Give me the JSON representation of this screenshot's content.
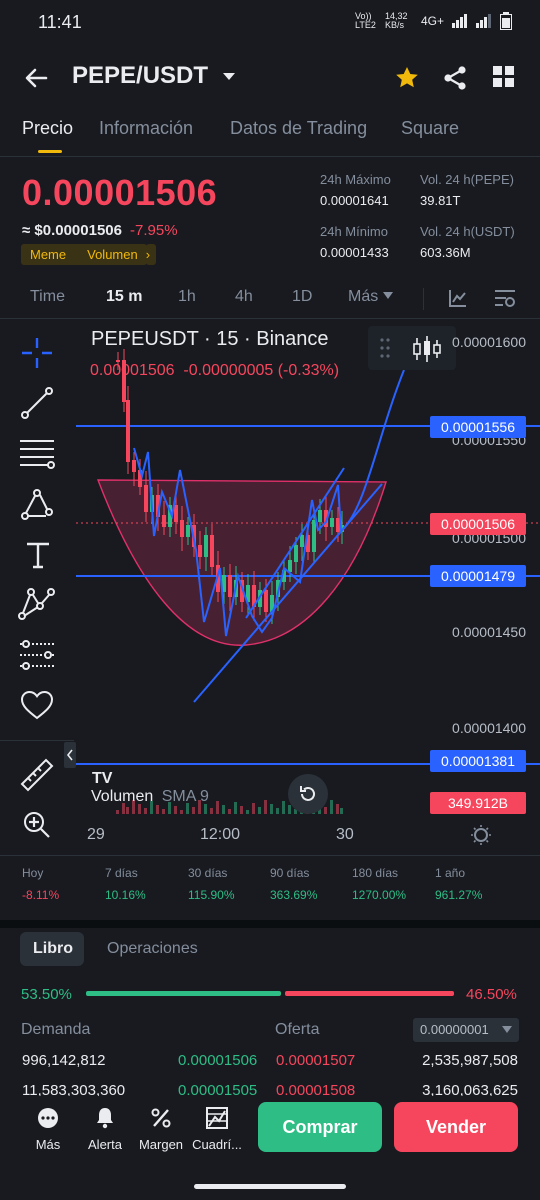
{
  "status": {
    "time": "11:41",
    "network": "Vo)) LTE2",
    "speed": "14,32 KB/s",
    "signal": "4G+"
  },
  "header": {
    "pair": "PEPE/USDT"
  },
  "tabs": [
    "Precio",
    "Información",
    "Datos de Trading",
    "Square"
  ],
  "price": {
    "last": "0.00001506",
    "approx": "≈ $0.00001506",
    "change": "-7.95%",
    "tags": [
      "Meme",
      "Volumen"
    ]
  },
  "stats": {
    "high_label": "24h Máximo",
    "high": "0.00001641",
    "low_label": "24h Mínimo",
    "low": "0.00001433",
    "vol_pepe_label": "Vol. 24 h(PEPE)",
    "vol_pepe": "39.81T",
    "vol_usdt_label": "Vol. 24 h(USDT)",
    "vol_usdt": "603.36M"
  },
  "timeframes": [
    "Time",
    "15 m",
    "1h",
    "4h",
    "1D",
    "Más"
  ],
  "chart": {
    "symbol_line": "PEPEUSDT · 15 · Binance",
    "ohlc_line": "0.00001506  -0.00000005 (-0.33%)",
    "axis": [
      "0.00001600",
      "0.00001550",
      "0.00001500",
      "0.00001450",
      "0.00001400"
    ],
    "labels": {
      "l1556": "0.00001556",
      "l1506": "0.00001506",
      "l1479": "0.00001479",
      "l1381": "0.00001381",
      "vol": "349.912B"
    },
    "volume_label": "Volumen",
    "sma_label": "SMA 9",
    "x_labels": [
      "29",
      "12:00",
      "30"
    ],
    "logo": "TV"
  },
  "performance": [
    {
      "period": "Hoy",
      "value": "-8.11%",
      "color": "#f6465d"
    },
    {
      "period": "7 días",
      "value": "10.16%",
      "color": "#2ebd85"
    },
    {
      "period": "30 días",
      "value": "115.90%",
      "color": "#2ebd85"
    },
    {
      "period": "90 días",
      "value": "363.69%",
      "color": "#2ebd85"
    },
    {
      "period": "180 días",
      "value": "1270.00%",
      "color": "#2ebd85"
    },
    {
      "period": "1 año",
      "value": "961.27%",
      "color": "#2ebd85"
    }
  ],
  "orderbook": {
    "tabs": [
      "Libro",
      "Operaciones"
    ],
    "buy_pct": "53.50%",
    "sell_pct": "46.50%",
    "buy_ratio": 0.535,
    "demand_label": "Demanda",
    "offer_label": "Oferta",
    "precision": "0.00000001",
    "rows": [
      {
        "bid_qty": "996,142,812",
        "bid": "0.00001506",
        "ask": "0.00001507",
        "ask_qty": "2,535,987,508"
      },
      {
        "bid_qty": "11,583,303,360",
        "bid": "0.00001505",
        "ask": "0.00001508",
        "ask_qty": "3,160,063,625"
      }
    ]
  },
  "bottom": {
    "items": [
      "Más",
      "Alerta",
      "Margen",
      "Cuadrí..."
    ],
    "buy": "Comprar",
    "sell": "Vender"
  },
  "colors": {
    "up": "#2ebd85",
    "down": "#f6465d",
    "accent": "#f0b90b",
    "line_blue": "#2962ff"
  }
}
